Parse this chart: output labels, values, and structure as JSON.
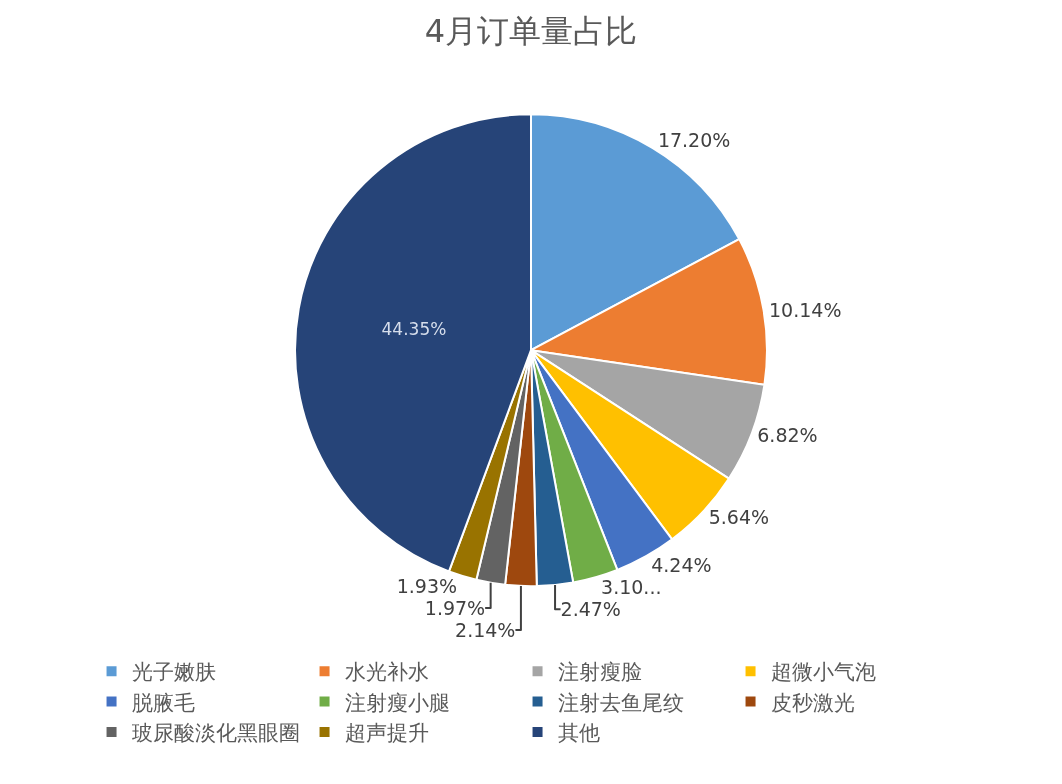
{
  "chart_data": {
    "type": "pie",
    "title": "4月订单量占比",
    "categories": [
      "光子嫩肤",
      "水光补水",
      "注射瘦脸",
      "超微小气泡",
      "脱腋毛",
      "注射瘦小腿",
      "注射去鱼尾纹",
      "皮秒激光",
      "玻尿酸淡化黑眼圈",
      "超声提升",
      "其他"
    ],
    "values": [
      17.2,
      10.14,
      6.82,
      5.64,
      4.24,
      3.1,
      2.47,
      2.14,
      1.97,
      1.93,
      44.35
    ],
    "value_labels": [
      "17.20%",
      "10.14%",
      "6.82%",
      "5.64%",
      "4.24%",
      "3.10...",
      "2.47%",
      "2.14%",
      "1.97%",
      "1.93%",
      "44.35%"
    ],
    "colors": [
      "#5b9bd5",
      "#ed7d31",
      "#a5a5a5",
      "#ffc000",
      "#4472c4",
      "#70ad47",
      "#255e91",
      "#9e480e",
      "#636363",
      "#997300",
      "#264478"
    ],
    "legend": "bottom"
  }
}
